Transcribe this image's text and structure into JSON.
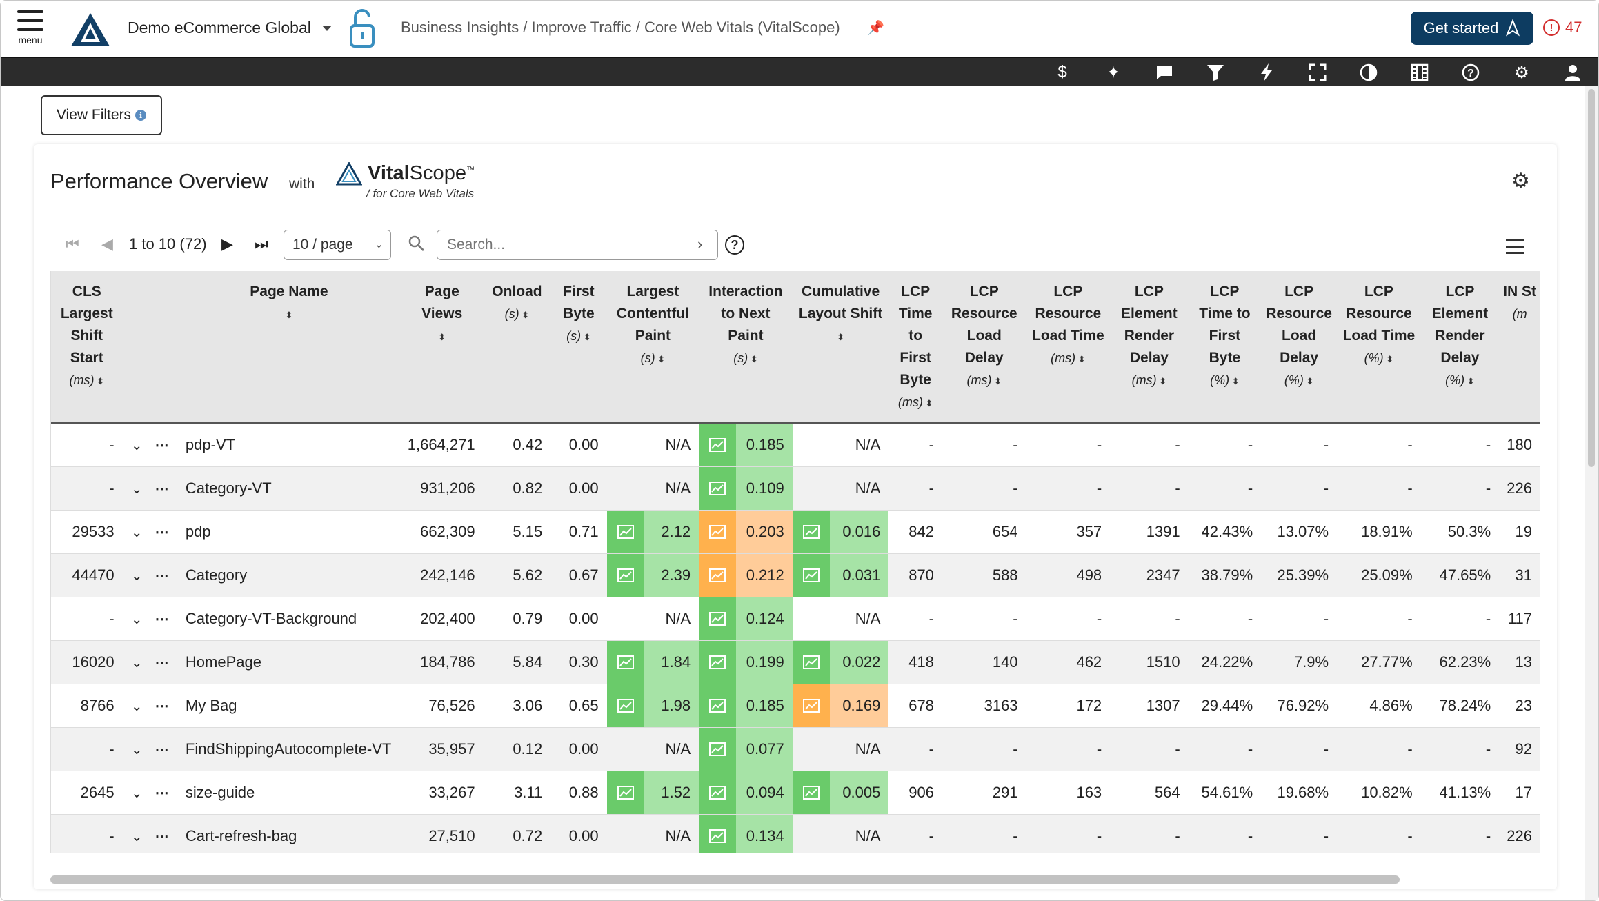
{
  "header": {
    "menu_label": "menu",
    "org_name": "Demo eCommerce Global",
    "breadcrumb": "Business Insights / Improve Traffic / Core Web Vitals (VitalScope)",
    "get_started": "Get started",
    "alert_count": "47"
  },
  "toolbar": {
    "icons": [
      "dollar-icon",
      "sparkle-icon",
      "chat-icon",
      "filter-icon",
      "bolt-icon",
      "fullscreen-icon",
      "contrast-icon",
      "video-icon",
      "help-icon",
      "gear-icon",
      "user-icon"
    ]
  },
  "filters": {
    "view_filters": "View Filters"
  },
  "panel": {
    "title": "Performance Overview",
    "with": "with",
    "brand_bold": "Vital",
    "brand_rest": "Scope",
    "brand_tm": "™",
    "brand_sub": "/ for Core Web Vitals"
  },
  "pager": {
    "range": "1 to 10 (72)",
    "page_size": "10 / page",
    "search_placeholder": "Search..."
  },
  "columns": [
    {
      "label": "CLS Largest Shift Start",
      "unit": "(ms)"
    },
    {
      "label": "",
      "unit": ""
    },
    {
      "label": "Page Name",
      "unit": ""
    },
    {
      "label": "Page Views",
      "unit": ""
    },
    {
      "label": "Onload",
      "unit": "(s)"
    },
    {
      "label": "First Byte",
      "unit": "(s)"
    },
    {
      "label": "Largest Contentful Paint",
      "unit": "(s)"
    },
    {
      "label": "Interaction to Next Paint",
      "unit": "(s)"
    },
    {
      "label": "Cumulative Layout Shift",
      "unit": ""
    },
    {
      "label": "LCP Time to First Byte",
      "unit": "(ms)"
    },
    {
      "label": "LCP Resource Load Delay",
      "unit": "(ms)"
    },
    {
      "label": "LCP Resource Load Time",
      "unit": "(ms)"
    },
    {
      "label": "LCP Element Render Delay",
      "unit": "(ms)"
    },
    {
      "label": "LCP Time to First Byte",
      "unit": "(%)"
    },
    {
      "label": "LCP Resource Load Delay",
      "unit": "(%)"
    },
    {
      "label": "LCP Resource Load Time",
      "unit": "(%)"
    },
    {
      "label": "LCP Element Render Delay",
      "unit": "(%)"
    },
    {
      "label": "IN St",
      "unit": "(m"
    }
  ],
  "rows": [
    {
      "cls_start": "-",
      "name": "pdp-VT",
      "views": "1,664,271",
      "onload": "0.42",
      "fb": "0.00",
      "lcp": "N/A",
      "lcp_c": "",
      "inp": "0.185",
      "inp_c": "g",
      "cls": "N/A",
      "cls_c": "",
      "ttfb": "-",
      "rld": "-",
      "rlt": "-",
      "erd": "-",
      "ttfb_p": "-",
      "rld_p": "-",
      "rlt_p": "-",
      "erd_p": "-",
      "in": "180"
    },
    {
      "cls_start": "-",
      "name": "Category-VT",
      "views": "931,206",
      "onload": "0.82",
      "fb": "0.00",
      "lcp": "N/A",
      "lcp_c": "",
      "inp": "0.109",
      "inp_c": "g",
      "cls": "N/A",
      "cls_c": "",
      "ttfb": "-",
      "rld": "-",
      "rlt": "-",
      "erd": "-",
      "ttfb_p": "-",
      "rld_p": "-",
      "rlt_p": "-",
      "erd_p": "-",
      "in": "226"
    },
    {
      "cls_start": "29533",
      "name": "pdp",
      "views": "662,309",
      "onload": "5.15",
      "fb": "0.71",
      "lcp": "2.12",
      "lcp_c": "g",
      "inp": "0.203",
      "inp_c": "o",
      "cls": "0.016",
      "cls_c": "g",
      "ttfb": "842",
      "rld": "654",
      "rlt": "357",
      "erd": "1391",
      "ttfb_p": "42.43%",
      "rld_p": "13.07%",
      "rlt_p": "18.91%",
      "erd_p": "50.3%",
      "in": "19"
    },
    {
      "cls_start": "44470",
      "name": "Category",
      "views": "242,146",
      "onload": "5.62",
      "fb": "0.67",
      "lcp": "2.39",
      "lcp_c": "g",
      "inp": "0.212",
      "inp_c": "o",
      "cls": "0.031",
      "cls_c": "g",
      "ttfb": "870",
      "rld": "588",
      "rlt": "498",
      "erd": "2347",
      "ttfb_p": "38.79%",
      "rld_p": "25.39%",
      "rlt_p": "25.09%",
      "erd_p": "47.65%",
      "in": "31"
    },
    {
      "cls_start": "-",
      "name": "Category-VT-Background",
      "views": "202,400",
      "onload": "0.79",
      "fb": "0.00",
      "lcp": "N/A",
      "lcp_c": "",
      "inp": "0.124",
      "inp_c": "g",
      "cls": "N/A",
      "cls_c": "",
      "ttfb": "-",
      "rld": "-",
      "rlt": "-",
      "erd": "-",
      "ttfb_p": "-",
      "rld_p": "-",
      "rlt_p": "-",
      "erd_p": "-",
      "in": "117"
    },
    {
      "cls_start": "16020",
      "name": "HomePage",
      "views": "184,786",
      "onload": "5.84",
      "fb": "0.30",
      "lcp": "1.84",
      "lcp_c": "g",
      "inp": "0.199",
      "inp_c": "g",
      "cls": "0.022",
      "cls_c": "g",
      "ttfb": "418",
      "rld": "140",
      "rlt": "462",
      "erd": "1510",
      "ttfb_p": "24.22%",
      "rld_p": "7.9%",
      "rlt_p": "27.77%",
      "erd_p": "62.23%",
      "in": "13"
    },
    {
      "cls_start": "8766",
      "name": "My Bag",
      "views": "76,526",
      "onload": "3.06",
      "fb": "0.65",
      "lcp": "1.98",
      "lcp_c": "g",
      "inp": "0.185",
      "inp_c": "g",
      "cls": "0.169",
      "cls_c": "o",
      "ttfb": "678",
      "rld": "3163",
      "rlt": "172",
      "erd": "1307",
      "ttfb_p": "29.44%",
      "rld_p": "76.92%",
      "rlt_p": "4.86%",
      "erd_p": "78.24%",
      "in": "23"
    },
    {
      "cls_start": "-",
      "name": "FindShippingAutocomplete-VT",
      "views": "35,957",
      "onload": "0.12",
      "fb": "0.00",
      "lcp": "N/A",
      "lcp_c": "",
      "inp": "0.077",
      "inp_c": "g",
      "cls": "N/A",
      "cls_c": "",
      "ttfb": "-",
      "rld": "-",
      "rlt": "-",
      "erd": "-",
      "ttfb_p": "-",
      "rld_p": "-",
      "rlt_p": "-",
      "erd_p": "-",
      "in": "92"
    },
    {
      "cls_start": "2645",
      "name": "size-guide",
      "views": "33,267",
      "onload": "3.11",
      "fb": "0.88",
      "lcp": "1.52",
      "lcp_c": "g",
      "inp": "0.094",
      "inp_c": "g",
      "cls": "0.005",
      "cls_c": "g",
      "ttfb": "906",
      "rld": "291",
      "rlt": "163",
      "erd": "564",
      "ttfb_p": "54.61%",
      "rld_p": "19.68%",
      "rlt_p": "10.82%",
      "erd_p": "41.13%",
      "in": "17"
    },
    {
      "cls_start": "-",
      "name": "Cart-refresh-bag",
      "views": "27,510",
      "onload": "0.72",
      "fb": "0.00",
      "lcp": "N/A",
      "lcp_c": "",
      "inp": "0.134",
      "inp_c": "g",
      "cls": "N/A",
      "cls_c": "",
      "ttfb": "-",
      "rld": "-",
      "rlt": "-",
      "erd": "-",
      "ttfb_p": "-",
      "rld_p": "-",
      "rlt_p": "-",
      "erd_p": "-",
      "in": "226"
    }
  ]
}
